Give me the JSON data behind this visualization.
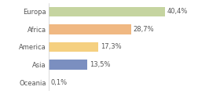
{
  "categories": [
    "Europa",
    "Africa",
    "America",
    "Asia",
    "Oceania"
  ],
  "values": [
    40.4,
    28.7,
    17.3,
    13.5,
    0.1
  ],
  "labels": [
    "40,4%",
    "28,7%",
    "17,3%",
    "13,5%",
    "0,1%"
  ],
  "bar_colors": [
    "#c5d4a0",
    "#f0b882",
    "#f5d080",
    "#7b8fc0",
    "#e8e8e8"
  ],
  "background_color": "#ffffff",
  "text_color": "#555555",
  "label_fontsize": 6.0,
  "tick_fontsize": 6.0,
  "bar_height": 0.55,
  "xlim": [
    0,
    58
  ]
}
